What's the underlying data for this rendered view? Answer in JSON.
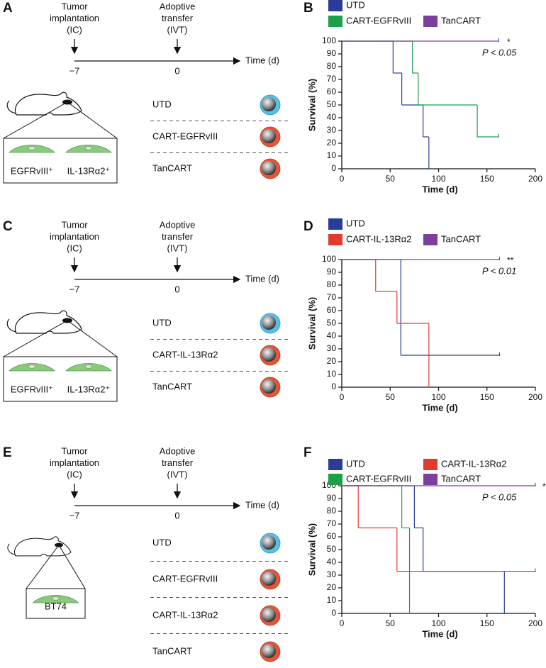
{
  "panels": [
    {
      "letter": "A",
      "implantation": [
        "Tumor",
        "implantation",
        "(IC)"
      ],
      "transfer": [
        "Adoptive",
        "transfer",
        "(IVT)"
      ],
      "timepoints": [
        "−7",
        "0"
      ],
      "time_label": "Time (d)",
      "groups": [
        "UTD",
        "CART-EGFRvIII",
        "TanCART"
      ],
      "cells": [
        "EGFRvIII⁺",
        "IL-13Rα2⁺"
      ]
    },
    {
      "letter": "C",
      "implantation": [
        "Tumor",
        "implantation",
        "(IC)"
      ],
      "transfer": [
        "Adoptive",
        "transfer",
        "(IVT)"
      ],
      "timepoints": [
        "−7",
        "0"
      ],
      "time_label": "Time (d)",
      "groups": [
        "UTD",
        "CART-IL-13Rα2",
        "TanCART"
      ],
      "cells": [
        "EGFRvIII⁺",
        "IL-13Rα2⁺"
      ]
    },
    {
      "letter": "E",
      "implantation": [
        "Tumor",
        "implantation",
        "(IC)"
      ],
      "transfer": [
        "Adoptive",
        "transfer",
        "(IVT)"
      ],
      "timepoints": [
        "−7",
        "0"
      ],
      "time_label": "Time (d)",
      "groups": [
        "UTD",
        "CART-EGFRvIII",
        "CART-IL-13Rα2",
        "TanCART"
      ],
      "cells": [
        "BT74"
      ]
    }
  ],
  "chart_data": [
    {
      "type": "line",
      "step": true,
      "panel": "B",
      "annotation": "*",
      "p_value": "P < 0.05",
      "xlabel": "Time (d)",
      "ylabel": "Survival (%)",
      "xlim": [
        0,
        200
      ],
      "ylim": [
        0,
        100
      ],
      "xticks": [
        0,
        50,
        100,
        150,
        200
      ],
      "yticks": [
        0,
        10,
        20,
        30,
        40,
        50,
        60,
        70,
        80,
        90,
        100
      ],
      "series": [
        {
          "name": "UTD",
          "color": "#2b3c98",
          "x": [
            0,
            53,
            62,
            84,
            90
          ],
          "values": [
            100,
            75,
            50,
            25,
            0
          ]
        },
        {
          "name": "CART-EGFRvIII",
          "color": "#1f9e4a",
          "x": [
            0,
            73,
            79,
            140,
            162
          ],
          "values": [
            100,
            75,
            50,
            25,
            25
          ]
        },
        {
          "name": "TanCART",
          "color": "#7b3f9e",
          "x": [
            0,
            162
          ],
          "values": [
            100,
            100
          ]
        }
      ]
    },
    {
      "type": "line",
      "step": true,
      "panel": "D",
      "annotation": "**",
      "p_value": "P < 0.01",
      "xlabel": "Time (d)",
      "ylabel": "Survival (%)",
      "xlim": [
        0,
        200
      ],
      "ylim": [
        0,
        100
      ],
      "xticks": [
        0,
        50,
        100,
        150,
        200
      ],
      "yticks": [
        0,
        10,
        20,
        30,
        40,
        50,
        60,
        70,
        80,
        90,
        100
      ],
      "series": [
        {
          "name": "UTD",
          "color": "#2b3c98",
          "x": [
            0,
            61,
            163
          ],
          "values": [
            100,
            25,
            25
          ]
        },
        {
          "name": "CART-IL-13Rα2",
          "color": "#e23a2e",
          "x": [
            0,
            35,
            57,
            90
          ],
          "values": [
            100,
            75,
            50,
            0
          ]
        },
        {
          "name": "TanCART",
          "color": "#7b3f9e",
          "x": [
            0,
            163
          ],
          "values": [
            100,
            100
          ]
        }
      ]
    },
    {
      "type": "line",
      "step": true,
      "panel": "F",
      "annotation": "*",
      "p_value": "P < 0.05",
      "xlabel": "Time (d)",
      "ylabel": "Survival (%)",
      "xlim": [
        0,
        200
      ],
      "ylim": [
        0,
        100
      ],
      "xticks": [
        0,
        50,
        100,
        150,
        200
      ],
      "yticks": [
        0,
        10,
        20,
        30,
        40,
        50,
        60,
        70,
        80,
        90,
        100
      ],
      "series": [
        {
          "name": "UTD",
          "color": "#2b3c98",
          "x": [
            0,
            75,
            84,
            168
          ],
          "values": [
            100,
            67,
            33,
            0
          ]
        },
        {
          "name": "CART-EGFRvIII",
          "color": "#1f9e4a",
          "x": [
            0,
            62,
            70
          ],
          "values": [
            100,
            67,
            0
          ]
        },
        {
          "name": "CART-IL-13Rα2",
          "color": "#e23a2e",
          "x": [
            0,
            17,
            57,
            200
          ],
          "values": [
            100,
            67,
            33,
            33
          ]
        },
        {
          "name": "TanCART",
          "color": "#7b3f9e",
          "x": [
            0,
            200
          ],
          "values": [
            100,
            100
          ]
        }
      ]
    }
  ]
}
